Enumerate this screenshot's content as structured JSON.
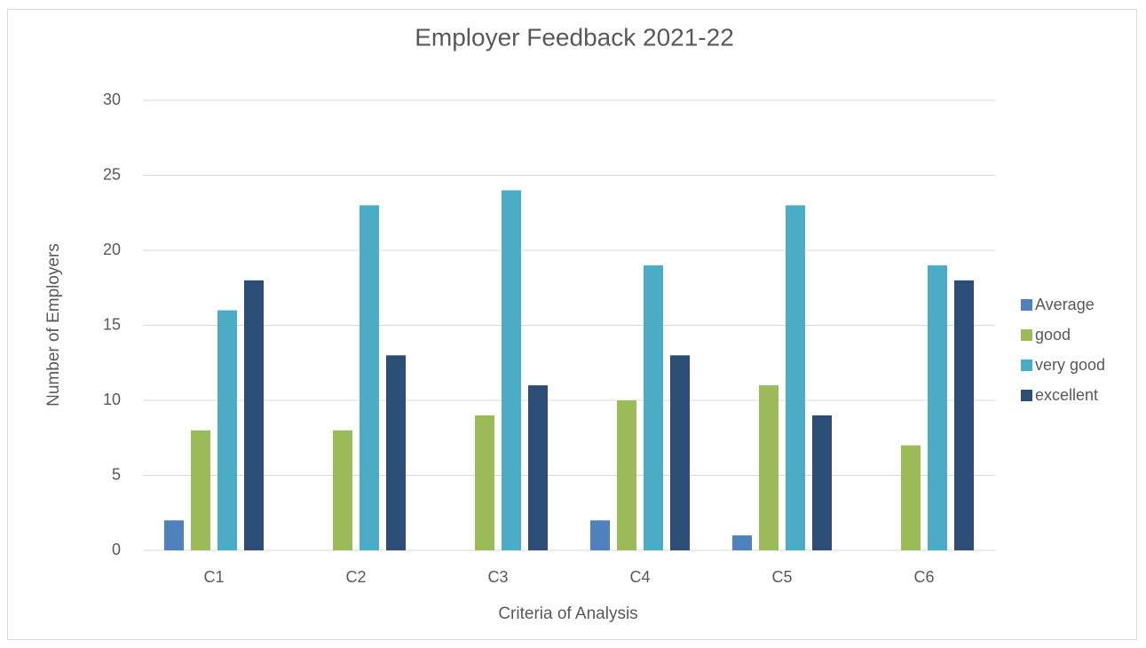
{
  "chart_data": {
    "type": "bar",
    "title": "Employer Feedback 2021-22",
    "xlabel": "Criteria of Analysis",
    "ylabel": "Number of Employers",
    "ylim": [
      0,
      30
    ],
    "yticks": [
      0,
      5,
      10,
      15,
      20,
      25,
      30
    ],
    "categories": [
      "C1",
      "C2",
      "C3",
      "C4",
      "C5",
      "C6"
    ],
    "series": [
      {
        "name": "Average",
        "color": "#4f81bd",
        "values": [
          2,
          0,
          0,
          2,
          1,
          0
        ]
      },
      {
        "name": "good",
        "color": "#9bbb59",
        "values": [
          8,
          8,
          9,
          10,
          11,
          7
        ]
      },
      {
        "name": "very good",
        "color": "#4bacc6",
        "values": [
          16,
          23,
          24,
          19,
          23,
          19
        ]
      },
      {
        "name": "excellent",
        "color": "#2c4d75",
        "values": [
          18,
          13,
          11,
          13,
          9,
          18
        ]
      }
    ],
    "grid": true,
    "legend_position": "right"
  }
}
